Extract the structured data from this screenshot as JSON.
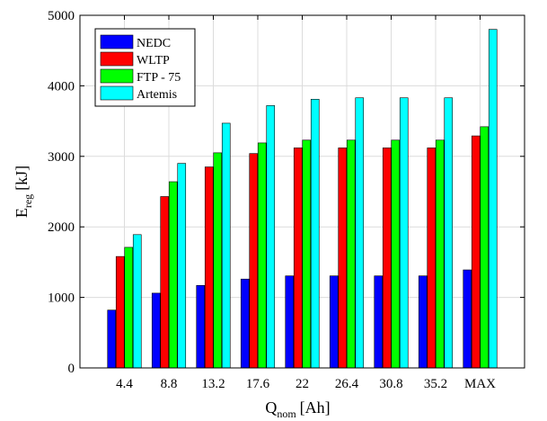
{
  "chart_data": {
    "type": "bar",
    "categories": [
      "4.4",
      "8.8",
      "13.2",
      "17.6",
      "22",
      "26.4",
      "30.8",
      "35.2",
      "MAX"
    ],
    "series": [
      {
        "name": "NEDC",
        "color": "#0000ff",
        "values": [
          820,
          1060,
          1170,
          1260,
          1305,
          1305,
          1305,
          1305,
          1390
        ]
      },
      {
        "name": "WLTP",
        "color": "#ff0000",
        "values": [
          1580,
          2430,
          2850,
          3040,
          3120,
          3120,
          3120,
          3120,
          3290
        ]
      },
      {
        "name": "FTP - 75",
        "color": "#00ff00",
        "values": [
          1710,
          2640,
          3050,
          3190,
          3230,
          3230,
          3230,
          3230,
          3420
        ]
      },
      {
        "name": "Artemis",
        "color": "#00ffff",
        "values": [
          1890,
          2900,
          3470,
          3720,
          3810,
          3830,
          3830,
          3830,
          4800
        ]
      }
    ],
    "ylim": [
      0,
      5000
    ],
    "yticks": [
      "0",
      "1000",
      "2000",
      "3000",
      "4000",
      "5000"
    ],
    "xlabel": {
      "main": "Q",
      "sub": "nom",
      "unit": "[Ah]"
    },
    "ylabel": {
      "main": "E",
      "sub": "reg",
      "unit": "[kJ]"
    },
    "grid": true,
    "legend_position": "top-left"
  }
}
